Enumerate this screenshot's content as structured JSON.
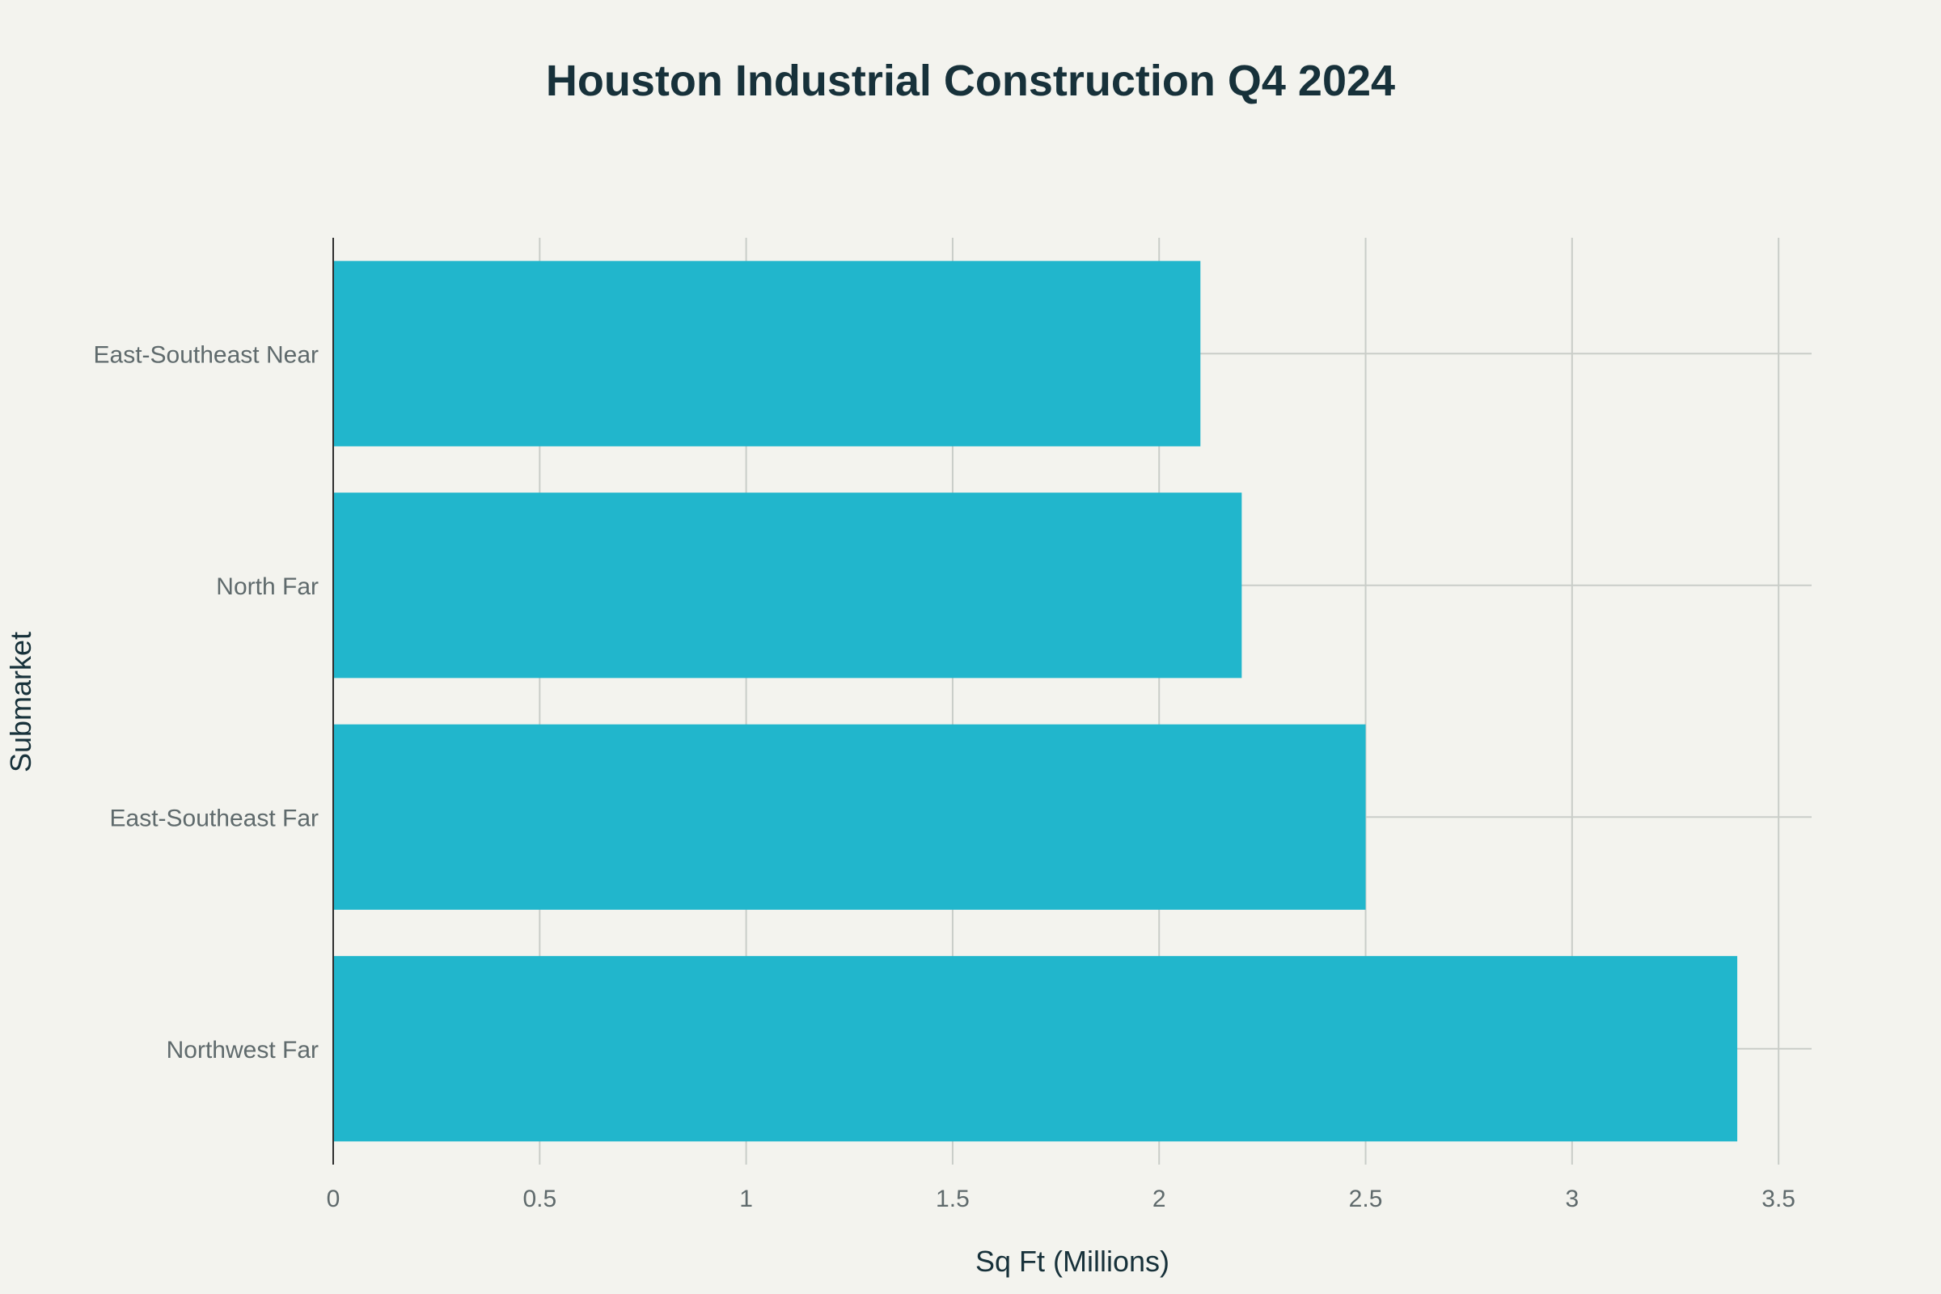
{
  "chart_data": {
    "type": "bar",
    "orientation": "horizontal",
    "title": "Houston Industrial Construction Q4 2024",
    "xlabel": "Sq Ft (Millions)",
    "ylabel": "Submarket",
    "categories": [
      "East-Southeast Near",
      "North Far",
      "East-Southeast Far",
      "Northwest Far"
    ],
    "values": [
      2.1,
      2.2,
      2.5,
      3.4
    ],
    "xlim": [
      0,
      3.58
    ],
    "xticks": [
      "0",
      "0.5",
      "1",
      "1.5",
      "2",
      "2.5",
      "3",
      "3.5"
    ],
    "grid": true,
    "legend": "none",
    "bar_color": "#21b6cc"
  }
}
